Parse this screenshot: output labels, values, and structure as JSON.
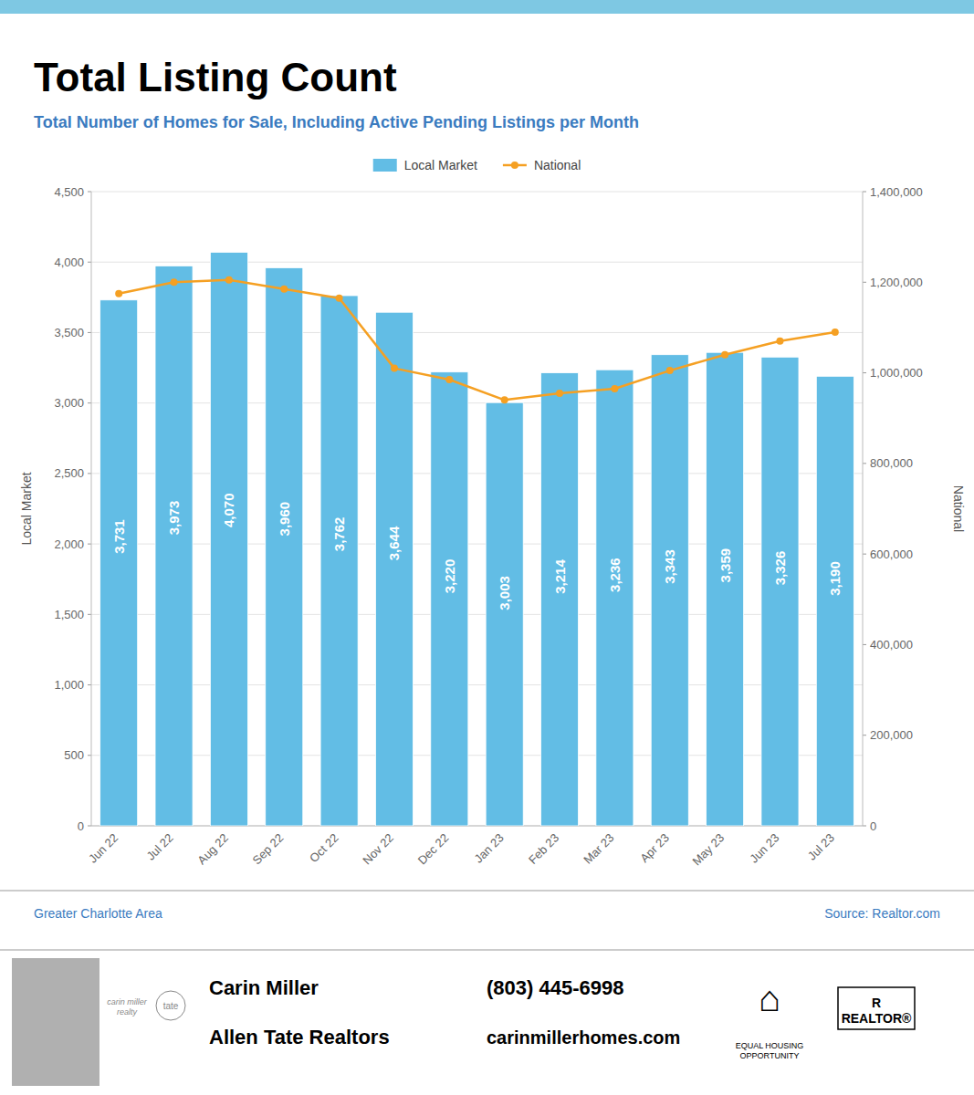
{
  "chart_data": {
    "type": "bar",
    "title": "Total Listing Count",
    "subtitle": "Total Number of Homes for Sale, Including Active Pending Listings per Month",
    "categories": [
      "Jun 22",
      "Jul 22",
      "Aug 22",
      "Sep 22",
      "Oct 22",
      "Nov 22",
      "Dec 22",
      "Jan 23",
      "Feb 23",
      "Mar 23",
      "Apr 23",
      "May 23",
      "Jun 23",
      "Jul 23"
    ],
    "series": [
      {
        "name": "Local Market",
        "type": "bar",
        "color": "#62bde5",
        "values": [
          3731,
          3973,
          4070,
          3960,
          3762,
          3644,
          3220,
          3003,
          3214,
          3236,
          3343,
          3359,
          3326,
          3190
        ],
        "value_labels": [
          "3,731",
          "3,973",
          "4,070",
          "3,960",
          "3,762",
          "3,644",
          "3,220",
          "3,003",
          "3,214",
          "3,236",
          "3,343",
          "3,359",
          "3,326",
          "3,190"
        ]
      },
      {
        "name": "National",
        "type": "line",
        "color": "#f5a023",
        "marker": "circle",
        "axis": "y2",
        "values": [
          1175000,
          1200000,
          1205000,
          1185000,
          1165000,
          1010000,
          985000,
          940000,
          955000,
          965000,
          1005000,
          1040000,
          1070000,
          1090000
        ]
      }
    ],
    "ylabel": "Local Market",
    "y2label": "National",
    "ylim": [
      0,
      4500
    ],
    "yticks": [
      0,
      500,
      {
        "value": 1000,
        "label": "1,000"
      },
      {
        "value": 1500,
        "label": "1,500"
      },
      {
        "value": 2000,
        "label": "2,000"
      },
      {
        "value": 2500,
        "label": "2,500"
      },
      {
        "value": 3000,
        "label": "3,000"
      },
      {
        "value": 3500,
        "label": "3,500"
      },
      {
        "value": 4000,
        "label": "4,000"
      },
      {
        "value": 4500,
        "label": "4,500"
      }
    ],
    "y2lim": [
      0,
      1400000
    ],
    "y2ticks": [
      0,
      {
        "value": 200000,
        "label": "200,000"
      },
      {
        "value": 400000,
        "label": "400,000"
      },
      {
        "value": 600000,
        "label": "600,000"
      },
      {
        "value": 800000,
        "label": "800,000"
      },
      {
        "value": 1000000,
        "label": "1,000,000"
      },
      {
        "value": 1200000,
        "label": "1,200,000"
      },
      {
        "value": 1400000,
        "label": "1,400,000"
      }
    ],
    "grid": true,
    "legend": "top",
    "data_labels": true,
    "annotations": [
      "Greater Charlotte Area",
      "Source: Realtor.com",
      "Carin Miller",
      "Allen Tate Realtors",
      "(803) 445-6998",
      "carinmillerhomes.com",
      "⌂",
      "EQUAL HOUSING\nOPPORTUNITY",
      "R\nREALTOR®",
      "carin miller\nrealty",
      "tate"
    ]
  }
}
